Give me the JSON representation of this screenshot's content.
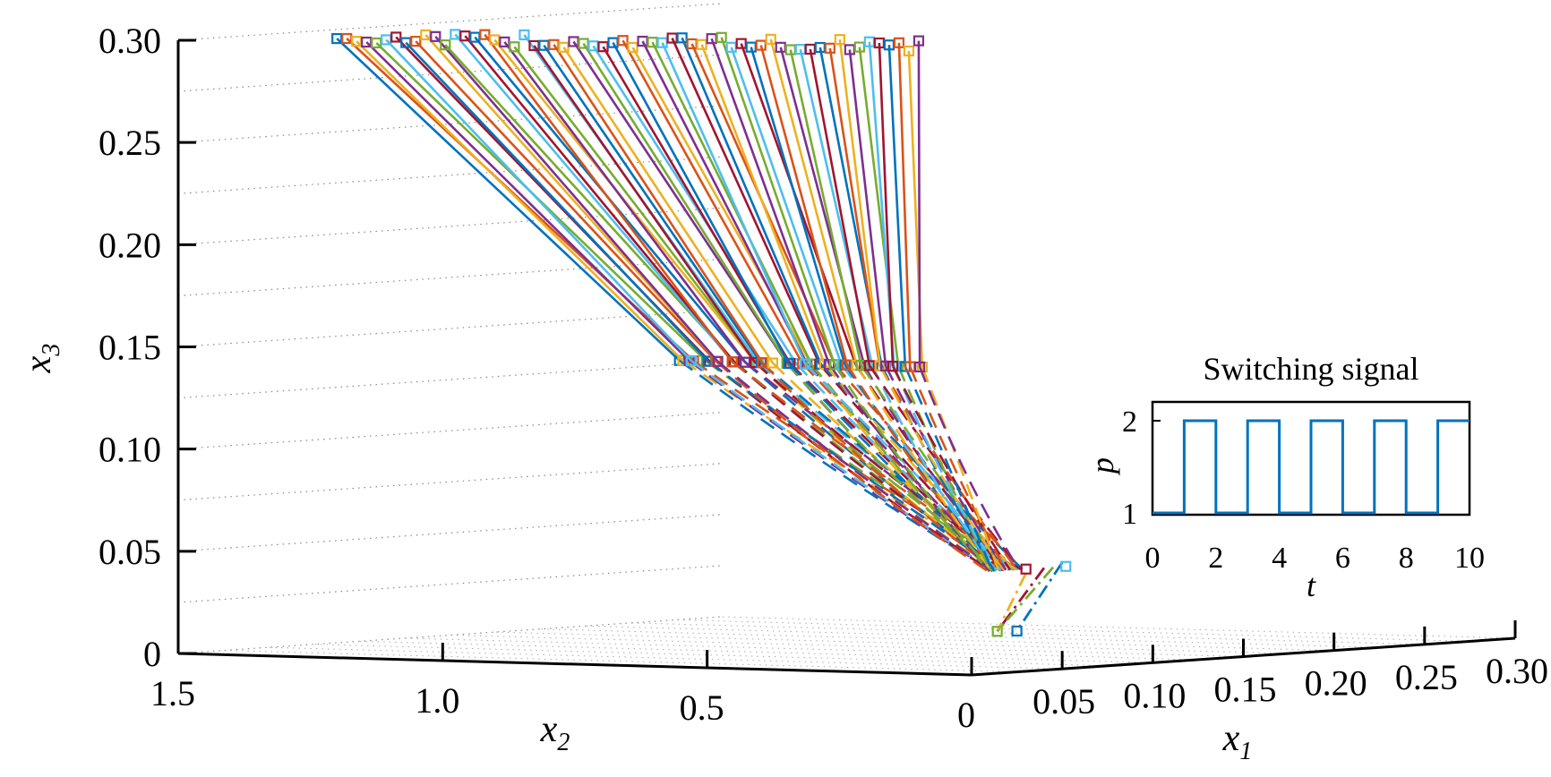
{
  "chart_data": [
    {
      "type": "line",
      "projection": "3d",
      "axes": {
        "x1": {
          "label": "x",
          "subscript": "1",
          "range": [
            0,
            0.3
          ],
          "ticks": [
            "0.05",
            "0.10",
            "0.15",
            "0.20",
            "0.25",
            "0.30"
          ]
        },
        "x2": {
          "label": "x",
          "subscript": "2",
          "range": [
            0,
            1.5
          ],
          "ticks": [
            "1.5",
            "1.0",
            "0.5",
            "0"
          ]
        },
        "x3": {
          "label": "x",
          "subscript": "3",
          "range": [
            0,
            0.3
          ],
          "ticks": [
            "0.30",
            "0.25",
            "0.20",
            "0.15",
            "0.10",
            "0.05",
            "0"
          ]
        }
      },
      "grid": true,
      "colors": [
        "#0072BD",
        "#D95319",
        "#EDB120",
        "#7E2F8E",
        "#77AC30",
        "#4DBEEE",
        "#A2142F"
      ],
      "marker": "square",
      "trajectory_stages": [
        {
          "from": "initial",
          "to": "first switch",
          "x3_from": 0.3,
          "x3_to": 0.15,
          "x2_from_range": [
            0.1,
            1.2
          ],
          "x2_to_range": [
            0.1,
            0.55
          ],
          "style": "solid"
        },
        {
          "from": "first switch",
          "to": "second switch",
          "x3_from": 0.15,
          "x3_to": 0.05,
          "style": "dashed"
        },
        {
          "from": "second switch",
          "to": "third switch",
          "x3_from": 0.05,
          "x3_to": 0.02,
          "style": "dash-dot"
        }
      ],
      "trajectory_count": 60
    },
    {
      "type": "line",
      "title": "Switching signal",
      "xlabel": "t",
      "ylabel": "p",
      "xlim": [
        0,
        10
      ],
      "ylim": [
        1,
        2
      ],
      "xticks": [
        "0",
        "2",
        "4",
        "6",
        "8",
        "10"
      ],
      "yticks": [
        "1",
        "2"
      ],
      "color": "#0072BD",
      "series": [
        {
          "x": [
            0,
            1,
            1,
            2,
            2,
            3,
            3,
            4,
            4,
            5,
            5,
            6,
            6,
            7,
            7,
            8,
            8,
            9,
            9,
            10
          ],
          "values": [
            1,
            1,
            2,
            2,
            1,
            1,
            2,
            2,
            1,
            1,
            2,
            2,
            1,
            1,
            2,
            2,
            1,
            1,
            2,
            2
          ]
        }
      ]
    }
  ]
}
